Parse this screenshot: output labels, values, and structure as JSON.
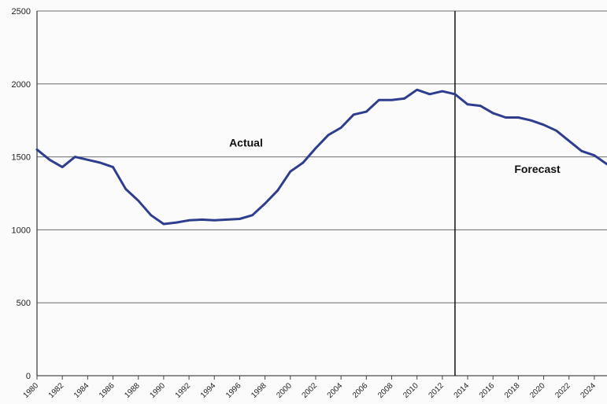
{
  "chart_data": {
    "type": "line",
    "title": "",
    "xlabel": "",
    "ylabel": "",
    "xlim": [
      1980,
      2025
    ],
    "ylim": [
      0,
      2500
    ],
    "grid": true,
    "y_ticks": [
      0,
      500,
      1000,
      1500,
      2000,
      2500
    ],
    "x_tick_labels": [
      "1980",
      "1982",
      "1984",
      "1986",
      "1988",
      "1990",
      "1992",
      "1994",
      "1996",
      "1998",
      "2000",
      "2002",
      "2004",
      "2006",
      "2008",
      "2010",
      "2012",
      "2014",
      "2016",
      "2018",
      "2020",
      "2022",
      "2024"
    ],
    "divider_x": 2013,
    "annotations": [
      {
        "text": "Actual",
        "x": 1996.5,
        "y": 1570
      },
      {
        "text": "Forecast",
        "x": 2019.5,
        "y": 1390
      }
    ],
    "line_color": "#2f3d8f",
    "series": [
      {
        "x": [
          1980,
          1981,
          1982,
          1983,
          1984,
          1985,
          1986,
          1987,
          1988,
          1989,
          1990,
          1991,
          1992,
          1993,
          1994,
          1995,
          1996,
          1997,
          1998,
          1999,
          2000,
          2001,
          2002,
          2003,
          2004,
          2005,
          2006,
          2007,
          2008,
          2009,
          2010,
          2011,
          2012,
          2013,
          2014,
          2015,
          2016,
          2017,
          2018,
          2019,
          2020,
          2021,
          2022,
          2023,
          2024,
          2025
        ],
        "values": [
          1550,
          1480,
          1430,
          1500,
          1480,
          1460,
          1430,
          1280,
          1200,
          1100,
          1040,
          1050,
          1065,
          1070,
          1065,
          1070,
          1075,
          1100,
          1180,
          1270,
          1400,
          1460,
          1560,
          1650,
          1700,
          1790,
          1810,
          1890,
          1890,
          1900,
          1960,
          1930,
          1950,
          1930,
          1860,
          1850,
          1800,
          1770,
          1770,
          1750,
          1720,
          1680,
          1610,
          1540,
          1510,
          1450
        ]
      }
    ]
  }
}
